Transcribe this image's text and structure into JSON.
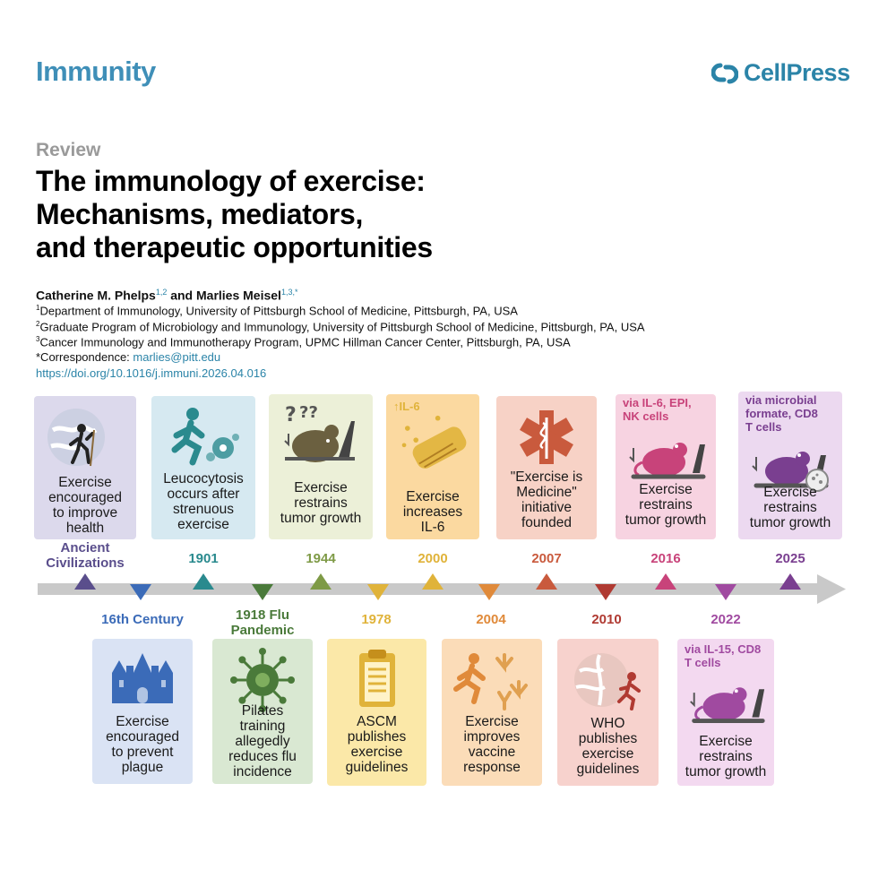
{
  "header": {
    "journal": "Immunity",
    "publisher": "CellPress"
  },
  "article": {
    "section": "Review",
    "title_lines": [
      "The immunology of exercise:",
      "Mechanisms, mediators,",
      "and therapeutic opportunities"
    ],
    "author1": "Catherine M. Phelps",
    "author1_sup": "1,2",
    "author_and": " and ",
    "author2": "Marlies Meisel",
    "author2_sup": "1,3,*",
    "affiliations": [
      {
        "sup": "1",
        "text": "Department of Immunology, University of Pittsburgh School of Medicine, Pittsburgh, PA, USA"
      },
      {
        "sup": "2",
        "text": "Graduate Program of Microbiology and Immunology, University of Pittsburgh School of Medicine, Pittsburgh, PA, USA"
      },
      {
        "sup": "3",
        "text": "Cancer Immunology and Immunotherapy Program, UPMC Hillman Cancer Center, Pittsburgh, PA, USA"
      }
    ],
    "correspondence_label": "*Correspondence: ",
    "correspondence_email": "marlies@pitt.edu",
    "doi": "https://doi.org/10.1016/j.immuni.2026.04.016"
  },
  "timeline": {
    "top": [
      {
        "year": "Ancient\nCivilizations",
        "caption": "Exercise\nencouraged\nto improve\nhealth",
        "note": "",
        "icon": "globe-hiker-icon",
        "color": "#5a4e8c",
        "bg": "#dcd9ec"
      },
      {
        "year": "1901",
        "caption": "Leucocytosis\noccurs after\nstrenuous\nexercise",
        "note": "",
        "icon": "runner-cells-icon",
        "color": "#2a8a8e",
        "bg": "#d6e9f1"
      },
      {
        "year": "1944",
        "caption": "Exercise\nrestrains\ntumor growth",
        "note": "",
        "icon": "mouse-question-icon",
        "color": "#7e9a46",
        "bg": "#ecf0d8"
      },
      {
        "year": "2000",
        "caption": "Exercise\nincreases\nIL-6",
        "note": "↑IL-6",
        "icon": "muscle-fiber-icon",
        "color": "#e0b33a",
        "bg": "#fbd9a0"
      },
      {
        "year": "2007",
        "caption": "\"Exercise is\nMedicine\"\ninitiative\nfounded",
        "note": "",
        "icon": "star-of-life-icon",
        "color": "#c95a3d",
        "bg": "#f7d2c6"
      },
      {
        "year": "2016",
        "caption": "Exercise\nrestrains\ntumor growth",
        "note": "via IL-6, EPI,\nNK cells",
        "icon": "mouse-treadmill-icon",
        "color": "#c8437a",
        "bg": "#f7d3e1"
      },
      {
        "year": "2025",
        "caption": "Exercise\nrestrains\ntumor growth",
        "note": "via microbial\nformate, CD8\nT cells",
        "icon": "mouse-microbe-icon",
        "color": "#7a3f90",
        "bg": "#ecd9f0"
      }
    ],
    "bottom": [
      {
        "year": "16th Century",
        "caption": "Exercise\nencouraged\nto prevent\nplague",
        "note": "",
        "icon": "castle-icon",
        "color": "#3b6bb8",
        "bg": "#dae3f4"
      },
      {
        "year": "1918 Flu\nPandemic",
        "caption": "Pilates\ntraining\nallegedly\nreduces flu\nincidence",
        "note": "",
        "icon": "virus-icon",
        "color": "#4a7a3a",
        "bg": "#d9e8d2"
      },
      {
        "year": "1978",
        "caption": "ASCM\npublishes\nexercise\nguidelines",
        "note": "",
        "icon": "clipboard-icon",
        "color": "#e0b33a",
        "bg": "#fbe8a8"
      },
      {
        "year": "2004",
        "caption": "Exercise\nimproves\nvaccine\nresponse",
        "note": "",
        "icon": "runner-antibody-icon",
        "color": "#e08a3a",
        "bg": "#fbdcb8"
      },
      {
        "year": "2010",
        "caption": "WHO\npublishes\nexercise\nguidelines",
        "note": "",
        "icon": "globe-runner-icon",
        "color": "#b03a32",
        "bg": "#f7d2cd"
      },
      {
        "year": "2022",
        "caption": "Exercise\nrestrains\ntumor growth",
        "note": "via IL-15, CD8\nT cells",
        "icon": "mouse-treadmill-icon",
        "color": "#a04aa0",
        "bg": "#f3d9f0"
      }
    ]
  }
}
